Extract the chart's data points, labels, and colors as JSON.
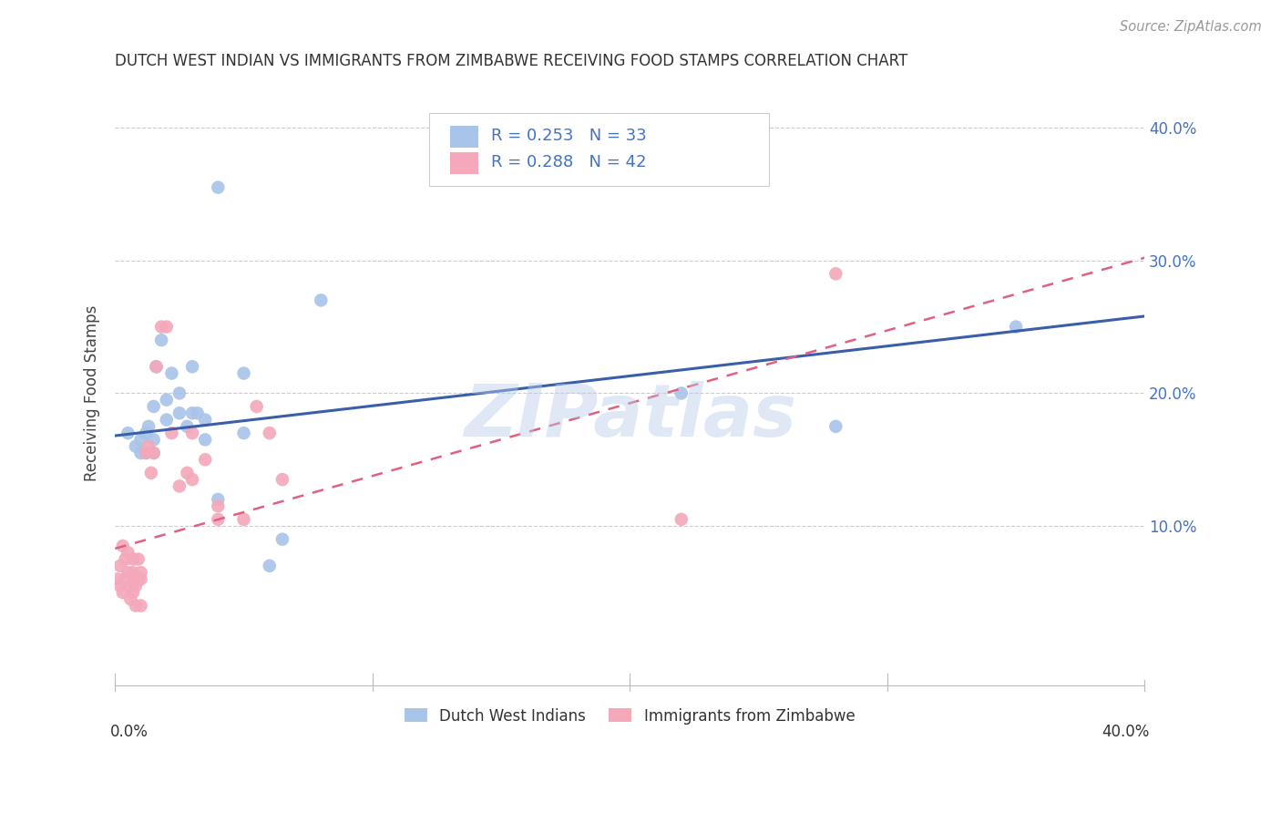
{
  "title": "DUTCH WEST INDIAN VS IMMIGRANTS FROM ZIMBABWE RECEIVING FOOD STAMPS CORRELATION CHART",
  "source": "Source: ZipAtlas.com",
  "ylabel": "Receiving Food Stamps",
  "xlim": [
    0.0,
    0.4
  ],
  "ylim": [
    -0.02,
    0.42
  ],
  "series1_name": "Dutch West Indians",
  "series2_name": "Immigrants from Zimbabwe",
  "series1_color": "#a8c4e8",
  "series2_color": "#f4a8ba",
  "series1_line_color": "#3a5faa",
  "series2_line_color": "#e06080",
  "blue_text_color": "#4472c4",
  "watermark": "ZIPatlas",
  "grid_color": "#cccccc",
  "background_color": "#ffffff",
  "scatter1_x": [
    0.005,
    0.008,
    0.01,
    0.01,
    0.012,
    0.012,
    0.013,
    0.015,
    0.015,
    0.015,
    0.016,
    0.018,
    0.02,
    0.02,
    0.022,
    0.025,
    0.025,
    0.028,
    0.03,
    0.03,
    0.032,
    0.035,
    0.035,
    0.04,
    0.04,
    0.05,
    0.05,
    0.06,
    0.065,
    0.08,
    0.22,
    0.28,
    0.35
  ],
  "scatter1_y": [
    0.17,
    0.16,
    0.165,
    0.155,
    0.17,
    0.155,
    0.175,
    0.165,
    0.155,
    0.19,
    0.22,
    0.24,
    0.18,
    0.195,
    0.215,
    0.2,
    0.185,
    0.175,
    0.185,
    0.22,
    0.185,
    0.18,
    0.165,
    0.12,
    0.355,
    0.215,
    0.17,
    0.07,
    0.09,
    0.27,
    0.2,
    0.175,
    0.25
  ],
  "scatter2_x": [
    0.001,
    0.002,
    0.002,
    0.003,
    0.003,
    0.004,
    0.004,
    0.005,
    0.005,
    0.006,
    0.006,
    0.007,
    0.007,
    0.007,
    0.008,
    0.008,
    0.009,
    0.009,
    0.01,
    0.01,
    0.01,
    0.012,
    0.013,
    0.014,
    0.015,
    0.016,
    0.018,
    0.02,
    0.022,
    0.025,
    0.028,
    0.03,
    0.03,
    0.035,
    0.04,
    0.04,
    0.05,
    0.055,
    0.06,
    0.065,
    0.22,
    0.28
  ],
  "scatter2_y": [
    0.06,
    0.07,
    0.055,
    0.085,
    0.05,
    0.075,
    0.06,
    0.08,
    0.065,
    0.055,
    0.045,
    0.075,
    0.05,
    0.065,
    0.055,
    0.04,
    0.075,
    0.06,
    0.065,
    0.06,
    0.04,
    0.155,
    0.16,
    0.14,
    0.155,
    0.22,
    0.25,
    0.25,
    0.17,
    0.13,
    0.14,
    0.17,
    0.135,
    0.15,
    0.115,
    0.105,
    0.105,
    0.19,
    0.17,
    0.135,
    0.105,
    0.29
  ],
  "trendline1_x": [
    0.0,
    0.4
  ],
  "trendline1_y": [
    0.168,
    0.258
  ],
  "trendline2_x": [
    0.0,
    0.4
  ],
  "trendline2_y": [
    0.083,
    0.302
  ],
  "yticks": [
    0.1,
    0.2,
    0.3,
    0.4
  ],
  "ytick_labels": [
    "10.0%",
    "20.0%",
    "30.0%",
    "40.0%"
  ],
  "xtick_positions": [
    0.0,
    0.1,
    0.2,
    0.3,
    0.4
  ]
}
